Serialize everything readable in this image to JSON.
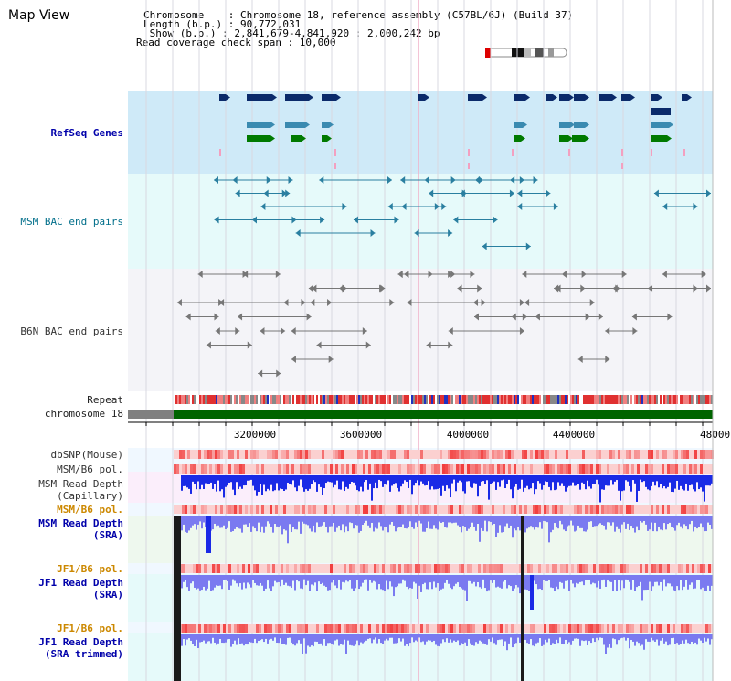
{
  "header": {
    "title": "Map View",
    "chromosome_line": "Chromosome    : Chromosome 18, reference assembly (C57BL/6J) (Build 37)",
    "length_line": "Length (b.p.) : 90,772,031",
    "show_line": " Show (b.p.) : 2,841,679-4,841,920 : 2,000,242 bp",
    "span_line": "Read coverage check span : 10,000"
  },
  "tracks": {
    "refseq": "RefSeq Genes",
    "msm_bac": "MSM BAC end pairs",
    "b6n_bac": "B6N BAC end pairs",
    "repeat": "Repeat",
    "chromosome": "chromosome 18",
    "dbsnp": "dbSNP(Mouse)",
    "msm_b6_pol_1": "MSM/B6 pol.",
    "msm_read_depth_cap_1": "MSM Read Depth",
    "msm_read_depth_cap_2": "(Capillary)",
    "msm_b6_pol_2": "MSM/B6 pol.",
    "msm_read_depth_sra_1": "MSM Read Depth",
    "msm_read_depth_sra_2": "(SRA)",
    "jf1_b6_pol_1": "JF1/B6 pol.",
    "jf1_read_depth_sra_1": "JF1 Read Depth",
    "jf1_read_depth_sra_2": "(SRA)",
    "jf1_b6_pol_2": "JF1/B6 pol.",
    "jf1_read_depth_trim_1": "JF1 Read Depth",
    "jf1_read_depth_trim_2": "(SRA trimmed)"
  },
  "axis": {
    "ticks": [
      "3200000",
      "3600000",
      "4000000",
      "4400000",
      "48000"
    ]
  },
  "colors": {
    "refseq_bg": "#cfeaf8",
    "bac_bg": "#e6fafa",
    "b6n_bg": "#f4f4f8",
    "chromosome_bar": "#006400",
    "gene_navy": "#0b2a6a",
    "gene_teal": "#3a8ab0",
    "gene_green": "#007a00",
    "depth_blue": "#1a2ae6",
    "depth_light": "#7a7af0",
    "pol_red": "#f03030"
  }
}
